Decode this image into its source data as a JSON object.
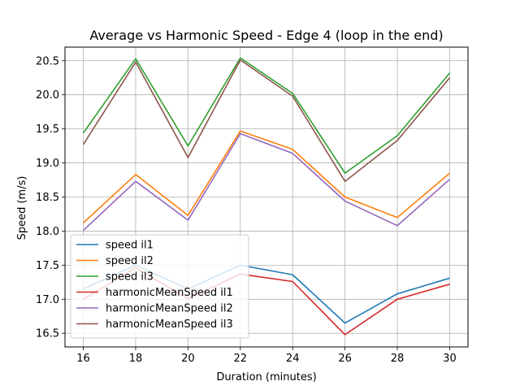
{
  "chart_data": {
    "type": "line",
    "title": "Average vs Harmonic Speed - Edge 4 (loop in the end)",
    "xlabel": "Duration (minutes)",
    "ylabel": "Speed (m/s)",
    "x": [
      16,
      18,
      20,
      22,
      24,
      26,
      28,
      30
    ],
    "xlim": [
      15.3,
      30.7
    ],
    "ylim": [
      16.3,
      20.7
    ],
    "xticks": [
      "16",
      "18",
      "20",
      "22",
      "24",
      "26",
      "28",
      "30"
    ],
    "yticks": [
      "16.5",
      "17.0",
      "17.5",
      "18.0",
      "18.5",
      "19.0",
      "19.5",
      "20.0",
      "20.5"
    ],
    "grid": true,
    "legend_position": "lower-left",
    "series": [
      {
        "name": "speed il1",
        "color": "#1f77b4",
        "values": [
          17.15,
          17.5,
          17.15,
          17.5,
          17.36,
          16.65,
          17.08,
          17.31
        ]
      },
      {
        "name": "speed il2",
        "color": "#ff7f0e",
        "values": [
          18.12,
          18.83,
          18.23,
          19.47,
          19.2,
          18.5,
          18.2,
          18.85
        ]
      },
      {
        "name": "speed il3",
        "color": "#2ca02c",
        "values": [
          19.44,
          20.53,
          19.25,
          20.54,
          20.02,
          18.85,
          19.4,
          20.32
        ]
      },
      {
        "name": "harmonicMeanSpeed il1",
        "color": "#d62728",
        "values": [
          17.0,
          17.46,
          17.01,
          17.37,
          17.26,
          16.48,
          17.0,
          17.22
        ]
      },
      {
        "name": "harmonicMeanSpeed il2",
        "color": "#9467bd",
        "values": [
          18.01,
          18.73,
          18.16,
          19.43,
          19.14,
          18.44,
          18.08,
          18.76
        ]
      },
      {
        "name": "harmonicMeanSpeed il3",
        "color": "#8c564b",
        "values": [
          19.27,
          20.48,
          19.08,
          20.51,
          19.98,
          18.73,
          19.33,
          20.25
        ]
      }
    ]
  }
}
